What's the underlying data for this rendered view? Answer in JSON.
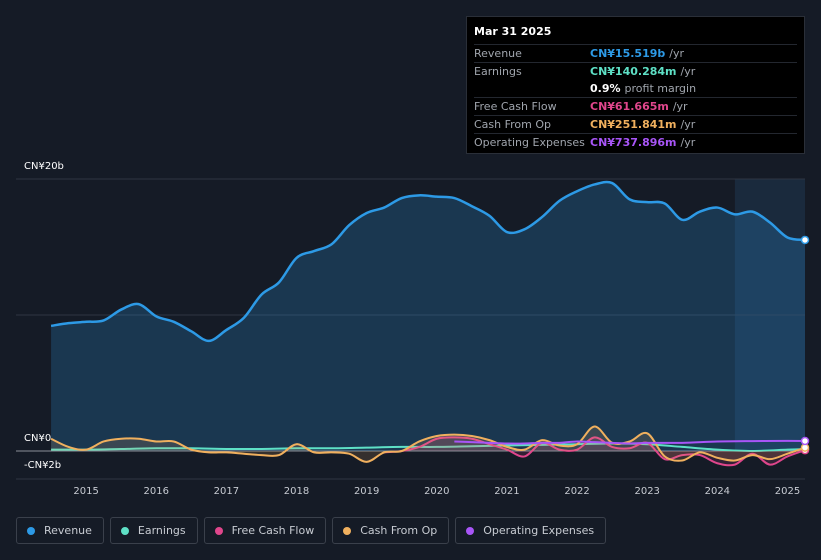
{
  "tooltip": {
    "date": "Mar 31 2025",
    "rows": [
      {
        "label": "Revenue",
        "value": "CN¥15.519b",
        "unit": "/yr",
        "color": "#2d9ae6"
      },
      {
        "label": "Earnings",
        "value": "CN¥140.284m",
        "unit": "/yr",
        "color": "#5ee0c6"
      },
      {
        "label": "",
        "value": "0.9%",
        "unit": "profit margin",
        "color": "#ffffff"
      },
      {
        "label": "Free Cash Flow",
        "value": "CN¥61.665m",
        "unit": "/yr",
        "color": "#e0468c"
      },
      {
        "label": "Cash From Op",
        "value": "CN¥251.841m",
        "unit": "/yr",
        "color": "#f0b05e"
      },
      {
        "label": "Operating Expenses",
        "value": "CN¥737.896m",
        "unit": "/yr",
        "color": "#a855f7"
      }
    ]
  },
  "chart_data": {
    "type": "area",
    "ylim": [
      -2,
      20
    ],
    "y_ticks": [
      {
        "value": 20,
        "label": "CN¥20b"
      },
      {
        "value": 0,
        "label": "CN¥0"
      },
      {
        "value": -2,
        "label": "-CN¥2b"
      }
    ],
    "x_ticks": [
      "2015",
      "2016",
      "2017",
      "2018",
      "2019",
      "2020",
      "2021",
      "2022",
      "2023",
      "2024",
      "2025"
    ],
    "x_range": [
      2014.0,
      2025.25
    ],
    "highlight_from": 2024.25,
    "series": [
      {
        "name": "Revenue",
        "color": "#2d9ae6",
        "fill": true,
        "points": [
          [
            2014.5,
            9.2
          ],
          [
            2014.75,
            9.4
          ],
          [
            2015.0,
            9.5
          ],
          [
            2015.25,
            9.6
          ],
          [
            2015.5,
            10.4
          ],
          [
            2015.75,
            10.8
          ],
          [
            2016.0,
            9.9
          ],
          [
            2016.25,
            9.5
          ],
          [
            2016.5,
            8.8
          ],
          [
            2016.75,
            8.1
          ],
          [
            2017.0,
            8.9
          ],
          [
            2017.25,
            9.8
          ],
          [
            2017.5,
            11.5
          ],
          [
            2017.75,
            12.4
          ],
          [
            2018.0,
            14.2
          ],
          [
            2018.25,
            14.7
          ],
          [
            2018.5,
            15.2
          ],
          [
            2018.75,
            16.6
          ],
          [
            2019.0,
            17.5
          ],
          [
            2019.25,
            17.9
          ],
          [
            2019.5,
            18.6
          ],
          [
            2019.75,
            18.8
          ],
          [
            2020.0,
            18.7
          ],
          [
            2020.25,
            18.6
          ],
          [
            2020.5,
            18.0
          ],
          [
            2020.75,
            17.3
          ],
          [
            2021.0,
            16.1
          ],
          [
            2021.25,
            16.3
          ],
          [
            2021.5,
            17.2
          ],
          [
            2021.75,
            18.4
          ],
          [
            2022.0,
            19.1
          ],
          [
            2022.25,
            19.6
          ],
          [
            2022.5,
            19.7
          ],
          [
            2022.75,
            18.5
          ],
          [
            2023.0,
            18.3
          ],
          [
            2023.25,
            18.2
          ],
          [
            2023.5,
            17.0
          ],
          [
            2023.75,
            17.6
          ],
          [
            2024.0,
            17.9
          ],
          [
            2024.25,
            17.4
          ],
          [
            2024.5,
            17.6
          ],
          [
            2024.75,
            16.8
          ],
          [
            2025.0,
            15.7
          ],
          [
            2025.25,
            15.519
          ]
        ]
      },
      {
        "name": "Earnings",
        "color": "#5ee0c6",
        "fill": false,
        "points": [
          [
            2014.5,
            0.1
          ],
          [
            2015.0,
            0.1
          ],
          [
            2015.5,
            0.15
          ],
          [
            2016.0,
            0.2
          ],
          [
            2016.5,
            0.2
          ],
          [
            2017.0,
            0.15
          ],
          [
            2017.5,
            0.15
          ],
          [
            2018.0,
            0.2
          ],
          [
            2018.5,
            0.2
          ],
          [
            2019.0,
            0.25
          ],
          [
            2019.5,
            0.3
          ],
          [
            2020.0,
            0.3
          ],
          [
            2020.5,
            0.35
          ],
          [
            2021.0,
            0.4
          ],
          [
            2021.5,
            0.45
          ],
          [
            2022.0,
            0.5
          ],
          [
            2022.5,
            0.55
          ],
          [
            2023.0,
            0.5
          ],
          [
            2023.5,
            0.3
          ],
          [
            2024.0,
            0.1
          ],
          [
            2024.5,
            0.0
          ],
          [
            2025.0,
            0.1
          ],
          [
            2025.25,
            0.14
          ]
        ]
      },
      {
        "name": "Free Cash Flow",
        "color": "#e0468c",
        "fill": false,
        "points": [
          [
            2019.25,
            -0.1
          ],
          [
            2019.5,
            0.0
          ],
          [
            2019.75,
            0.3
          ],
          [
            2020.0,
            0.9
          ],
          [
            2020.25,
            1.0
          ],
          [
            2020.5,
            0.9
          ],
          [
            2020.75,
            0.5
          ],
          [
            2021.0,
            0.1
          ],
          [
            2021.25,
            -0.4
          ],
          [
            2021.5,
            0.6
          ],
          [
            2021.75,
            0.1
          ],
          [
            2022.0,
            0.1
          ],
          [
            2022.25,
            1.0
          ],
          [
            2022.5,
            0.3
          ],
          [
            2022.75,
            0.2
          ],
          [
            2023.0,
            0.6
          ],
          [
            2023.25,
            -0.6
          ],
          [
            2023.5,
            -0.3
          ],
          [
            2023.75,
            -0.3
          ],
          [
            2024.0,
            -0.9
          ],
          [
            2024.25,
            -1.0
          ],
          [
            2024.5,
            -0.2
          ],
          [
            2024.75,
            -1.0
          ],
          [
            2025.0,
            -0.4
          ],
          [
            2025.25,
            0.06
          ]
        ]
      },
      {
        "name": "Cash From Op",
        "color": "#f0b05e",
        "fill": false,
        "points": [
          [
            2014.5,
            0.9
          ],
          [
            2014.75,
            0.3
          ],
          [
            2015.0,
            0.1
          ],
          [
            2015.25,
            0.7
          ],
          [
            2015.5,
            0.9
          ],
          [
            2015.75,
            0.9
          ],
          [
            2016.0,
            0.7
          ],
          [
            2016.25,
            0.7
          ],
          [
            2016.5,
            0.1
          ],
          [
            2016.75,
            -0.1
          ],
          [
            2017.0,
            -0.1
          ],
          [
            2017.25,
            -0.2
          ],
          [
            2017.5,
            -0.3
          ],
          [
            2017.75,
            -0.3
          ],
          [
            2018.0,
            0.5
          ],
          [
            2018.25,
            -0.1
          ],
          [
            2018.5,
            -0.1
          ],
          [
            2018.75,
            -0.2
          ],
          [
            2019.0,
            -0.8
          ],
          [
            2019.25,
            -0.1
          ],
          [
            2019.5,
            0.0
          ],
          [
            2019.75,
            0.7
          ],
          [
            2020.0,
            1.1
          ],
          [
            2020.25,
            1.2
          ],
          [
            2020.5,
            1.1
          ],
          [
            2020.75,
            0.8
          ],
          [
            2021.0,
            0.3
          ],
          [
            2021.25,
            0.1
          ],
          [
            2021.5,
            0.8
          ],
          [
            2021.75,
            0.4
          ],
          [
            2022.0,
            0.5
          ],
          [
            2022.25,
            1.8
          ],
          [
            2022.5,
            0.6
          ],
          [
            2022.75,
            0.7
          ],
          [
            2023.0,
            1.3
          ],
          [
            2023.25,
            -0.4
          ],
          [
            2023.5,
            -0.7
          ],
          [
            2023.75,
            -0.1
          ],
          [
            2024.0,
            -0.5
          ],
          [
            2024.25,
            -0.7
          ],
          [
            2024.5,
            -0.3
          ],
          [
            2024.75,
            -0.6
          ],
          [
            2025.0,
            -0.2
          ],
          [
            2025.25,
            0.25
          ]
        ]
      },
      {
        "name": "Operating Expenses",
        "color": "#a855f7",
        "fill": false,
        "points": [
          [
            2020.25,
            0.7
          ],
          [
            2020.5,
            0.65
          ],
          [
            2020.75,
            0.6
          ],
          [
            2021.0,
            0.55
          ],
          [
            2021.25,
            0.55
          ],
          [
            2021.5,
            0.6
          ],
          [
            2021.75,
            0.6
          ],
          [
            2022.0,
            0.7
          ],
          [
            2022.25,
            0.65
          ],
          [
            2022.5,
            0.6
          ],
          [
            2022.75,
            0.55
          ],
          [
            2023.0,
            0.6
          ],
          [
            2023.5,
            0.6
          ],
          [
            2024.0,
            0.7
          ],
          [
            2024.5,
            0.73
          ],
          [
            2025.0,
            0.74
          ],
          [
            2025.25,
            0.738
          ]
        ]
      }
    ]
  }
}
